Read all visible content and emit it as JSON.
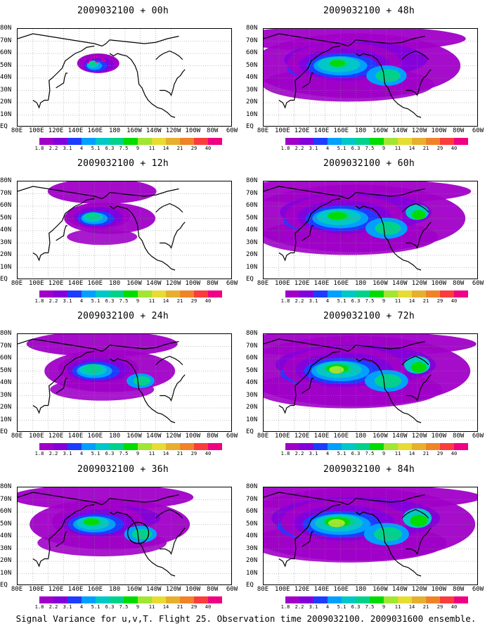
{
  "panels": [
    {
      "title": "2009032100 + 00h",
      "intensity": 0.0,
      "spread": 0.0,
      "extra": "track"
    },
    {
      "title": "2009032100 + 12h",
      "intensity": 0.25,
      "spread": 0.25,
      "extra": ""
    },
    {
      "title": "2009032100 + 24h",
      "intensity": 0.4,
      "spread": 0.45,
      "extra": ""
    },
    {
      "title": "2009032100 + 36h",
      "intensity": 0.45,
      "spread": 0.6,
      "extra": "circle"
    },
    {
      "title": "2009032100 + 48h",
      "intensity": 0.45,
      "spread": 0.85,
      "extra": ""
    },
    {
      "title": "2009032100 + 60h",
      "intensity": 0.6,
      "spread": 0.9,
      "extra": ""
    },
    {
      "title": "2009032100 + 72h",
      "intensity": 0.75,
      "spread": 0.95,
      "extra": ""
    },
    {
      "title": "2009032100 + 84h",
      "intensity": 0.9,
      "spread": 1.0,
      "extra": ""
    }
  ],
  "lat_labels": [
    "80N",
    "70N",
    "60N",
    "50N",
    "40N",
    "30N",
    "20N",
    "10N",
    "EQ"
  ],
  "lon_labels": [
    "80E",
    "100E",
    "120E",
    "140E",
    "160E",
    "180",
    "160W",
    "140W",
    "120W",
    "100W",
    "80W",
    "60W"
  ],
  "colorbar_labels": [
    "1.8",
    "2.2",
    "3.1",
    "4",
    "5.1",
    "6.3",
    "7.5",
    "9",
    "11",
    "14",
    "21",
    "29",
    "40"
  ],
  "colorbar_colors": [
    "#a000c8",
    "#8200dc",
    "#1e3cff",
    "#00a0ff",
    "#00c8c8",
    "#00d28c",
    "#00dc00",
    "#a0e632",
    "#e6dc32",
    "#e6af2d",
    "#f08228",
    "#fa3c3c",
    "#f00082"
  ],
  "footer": "Signal Variance for u,v,T. Flight 25. Observation time 2009032100. 2009031600 ensemble."
}
